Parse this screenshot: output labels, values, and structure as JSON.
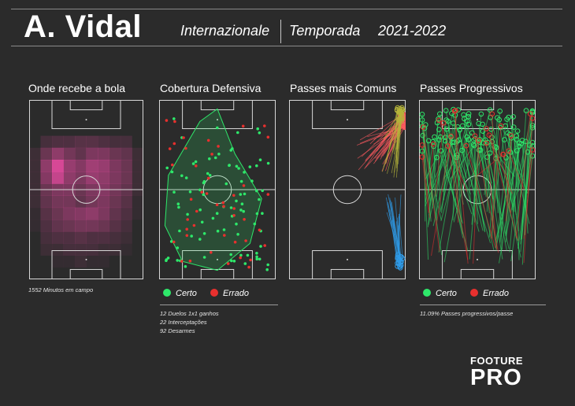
{
  "header": {
    "player": "A. Vidal",
    "team": "Internazionale",
    "season_label": "Temporada",
    "season": "2021-2022"
  },
  "panels": [
    {
      "title": "Onde recebe a bola",
      "notes": [
        "1552 Minutos em campo"
      ]
    },
    {
      "title": "Cobertura Defensiva",
      "notes": [
        "12 Duelos 1x1 ganhos",
        "22 Interceptações",
        "92 Desarmes"
      ]
    },
    {
      "title": "Passes mais Comuns",
      "notes": []
    },
    {
      "title": "Passes Progressivos",
      "notes": [
        "11.09% Passes progressivos/passe"
      ]
    }
  ],
  "legend": {
    "success": "Certo",
    "fail": "Errado"
  },
  "colors": {
    "background": "#2b2b2b",
    "success": "#2ee86a",
    "fail": "#e8302e",
    "heat": "#ff4fb0",
    "cluster_red": "#ff5a5f",
    "cluster_olive": "#b5b43a",
    "cluster_blue": "#2f9be8"
  },
  "brand": {
    "top": "FOOTURE",
    "bottom": "PRO"
  },
  "chart_data": [
    {
      "type": "heatmap",
      "title": "Onde recebe a bola",
      "grid_rows": 15,
      "grid_cols": 10,
      "values": [
        [
          0,
          0,
          0,
          0,
          0,
          0,
          0,
          0,
          0,
          0
        ],
        [
          0,
          0,
          0,
          0,
          0,
          0,
          0,
          0,
          0,
          0
        ],
        [
          0,
          0,
          0,
          0,
          0,
          0,
          0,
          0,
          0,
          0
        ],
        [
          0,
          0.15,
          0.2,
          0.2,
          0.25,
          0.25,
          0.2,
          0.15,
          0.15,
          0
        ],
        [
          0.1,
          0.35,
          0.55,
          0.4,
          0.3,
          0.45,
          0.45,
          0.35,
          0.3,
          0.1
        ],
        [
          0.1,
          0.55,
          0.95,
          0.6,
          0.5,
          0.65,
          0.6,
          0.45,
          0.35,
          0.1
        ],
        [
          0.1,
          0.5,
          0.85,
          0.55,
          0.45,
          0.6,
          0.55,
          0.45,
          0.35,
          0.1
        ],
        [
          0.1,
          0.35,
          0.45,
          0.45,
          0.35,
          0.45,
          0.5,
          0.4,
          0.3,
          0.1
        ],
        [
          0.1,
          0.3,
          0.4,
          0.4,
          0.3,
          0.4,
          0.45,
          0.35,
          0.25,
          0.05
        ],
        [
          0.05,
          0.25,
          0.35,
          0.45,
          0.5,
          0.55,
          0.45,
          0.3,
          0.2,
          0.05
        ],
        [
          0.05,
          0.2,
          0.3,
          0.35,
          0.4,
          0.4,
          0.35,
          0.25,
          0.15,
          0
        ],
        [
          0,
          0.15,
          0.2,
          0.2,
          0.25,
          0.2,
          0.2,
          0.15,
          0.1,
          0
        ],
        [
          0,
          0.1,
          0.1,
          0.15,
          0.15,
          0.15,
          0.1,
          0.1,
          0.05,
          0
        ],
        [
          0,
          0,
          0.05,
          0.05,
          0.1,
          0.05,
          0.05,
          0,
          0,
          0
        ],
        [
          0,
          0,
          0,
          0,
          0,
          0,
          0,
          0,
          0,
          0
        ]
      ]
    },
    {
      "type": "scatter",
      "title": "Cobertura Defensiva",
      "series": [
        {
          "name": "Certo",
          "count": 90
        },
        {
          "name": "Errado",
          "count": 45
        }
      ],
      "hull": [
        [
          0.5,
          0.05
        ],
        [
          0.65,
          0.3
        ],
        [
          0.88,
          0.55
        ],
        [
          0.78,
          0.8
        ],
        [
          0.5,
          0.95
        ],
        [
          0.2,
          0.9
        ],
        [
          0.05,
          0.7
        ],
        [
          0.08,
          0.42
        ],
        [
          0.35,
          0.12
        ]
      ]
    },
    {
      "type": "scatter",
      "title": "Passes mais Comuns",
      "series": [
        {
          "name": "cluster-red",
          "count": 32
        },
        {
          "name": "cluster-olive",
          "count": 22
        },
        {
          "name": "cluster-blue",
          "count": 20
        }
      ]
    },
    {
      "type": "scatter",
      "title": "Passes Progressivos",
      "series": [
        {
          "name": "Certo",
          "count": 110
        },
        {
          "name": "Errado",
          "count": 25
        }
      ]
    }
  ]
}
